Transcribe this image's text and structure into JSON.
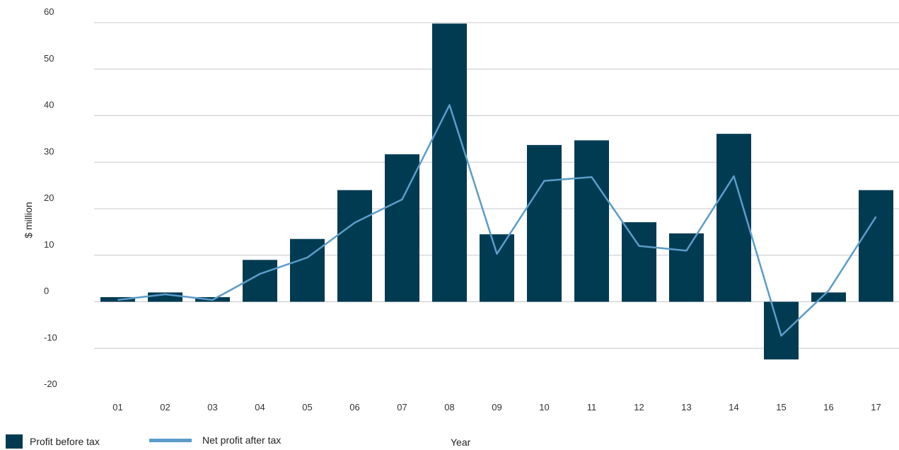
{
  "chart_data": {
    "type": "bar",
    "title": "",
    "xlabel": "Year",
    "ylabel": "$ million",
    "ylim": [
      -20,
      60
    ],
    "yticks": [
      -20,
      -10,
      0,
      10,
      20,
      30,
      40,
      50,
      60
    ],
    "grid": true,
    "legend_position": "bottom-left",
    "categories": [
      "01",
      "02",
      "03",
      "04",
      "05",
      "06",
      "07",
      "08",
      "09",
      "10",
      "11",
      "12",
      "13",
      "14",
      "15",
      "16",
      "17"
    ],
    "series": [
      {
        "name": "Profit before tax",
        "type": "bar",
        "color": "#003b52",
        "values": [
          1,
          2,
          1,
          9,
          13.5,
          24,
          31.7,
          59.8,
          14.5,
          33.7,
          34.7,
          17.1,
          14.7,
          36.1,
          -12.4,
          2,
          24
        ]
      },
      {
        "name": "Net profit after tax",
        "type": "line",
        "color": "#5b9cc9",
        "values": [
          0.4,
          1.6,
          0.4,
          6,
          9.5,
          17,
          22,
          42.3,
          10.3,
          26,
          26.8,
          12,
          11,
          27,
          -7.3,
          2.4,
          18.3
        ]
      }
    ]
  },
  "legend": {
    "bar_label": "Profit before tax",
    "line_label": "Net profit after tax"
  }
}
